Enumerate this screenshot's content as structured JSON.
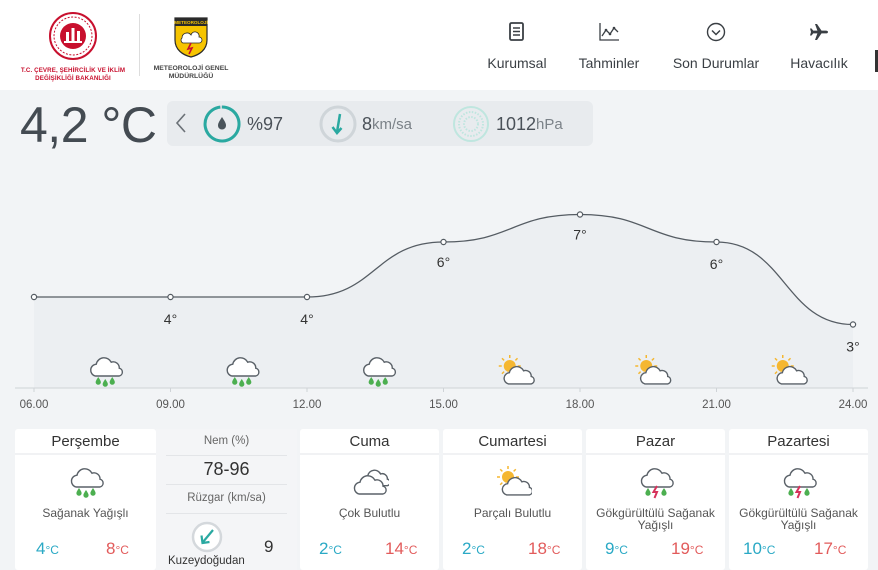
{
  "header": {
    "ministry_logo_text": "T.C. ÇEVRE, ŞEHİRCİLİK VE İKLİM DEĞİŞİKLİĞİ BAKANLIĞI",
    "mgm_logo_banner": "METEOROLOJİ",
    "mgm_logo_text": "METEOROLOJİ GENEL MÜDÜRLÜĞÜ",
    "nav": [
      {
        "label": "Kurumsal",
        "icon": "document-icon"
      },
      {
        "label": "Tahminler",
        "icon": "chart-line-icon"
      },
      {
        "label": "Son Durumlar",
        "icon": "chevron-circle-icon"
      },
      {
        "label": "Havacılık",
        "icon": "airplane-icon"
      }
    ]
  },
  "current": {
    "temperature": "4,2 °C",
    "humidity_value": "%97",
    "wind_value": "8",
    "wind_unit": "km/sa",
    "pressure_value": "1012",
    "pressure_unit": "hPa"
  },
  "chart_data": {
    "type": "line",
    "x": [
      "06.00",
      "09.00",
      "12.00",
      "15.00",
      "18.00",
      "21.00",
      "24.00"
    ],
    "values": [
      4,
      4,
      4,
      6,
      7,
      6,
      3
    ],
    "data_labels": [
      "",
      "4°",
      "4°",
      "6°",
      "7°",
      "6°",
      "3°"
    ],
    "weather_icons": [
      "rain-cloud-icon",
      "rain-cloud-icon",
      "rain-cloud-icon",
      "partly-cloudy-icon",
      "partly-cloudy-icon",
      "partly-cloudy-icon"
    ]
  },
  "forecast": {
    "today": {
      "day": "Perşembe",
      "description": "Sağanak Yağışlı",
      "min": "4",
      "max": "8",
      "unit": "°C",
      "icon": "rain-cloud-icon"
    },
    "details": {
      "humidity_label": "Nem (%)",
      "humidity_value": "78-96",
      "wind_label": "Rüzgar (km/sa)",
      "wind_direction": "Kuzeydoğudan",
      "wind_speed": "9"
    },
    "days": [
      {
        "day": "Cuma",
        "description": "Çok Bulutlu",
        "min": "2",
        "max": "14",
        "icon": "cloudy-icon"
      },
      {
        "day": "Cumartesi",
        "description": "Parçalı Bulutlu",
        "min": "2",
        "max": "18",
        "icon": "partly-cloudy-icon"
      },
      {
        "day": "Pazar",
        "description": "Gökgürültülü Sağanak Yağışlı",
        "min": "9",
        "max": "19",
        "icon": "thunder-rain-icon"
      },
      {
        "day": "Pazartesi",
        "description": "Gökgürültülü Sağanak Yağışlı",
        "min": "10",
        "max": "17",
        "icon": "thunder-rain-icon"
      }
    ],
    "unit": "°C"
  },
  "colors": {
    "accent_teal": "#2aa9a1",
    "min_temp": "#2aa9c5",
    "max_temp": "#e25b5b",
    "rain_drop": "#4caf50",
    "thunder": "#d6335b",
    "sun": "#f5b731"
  }
}
